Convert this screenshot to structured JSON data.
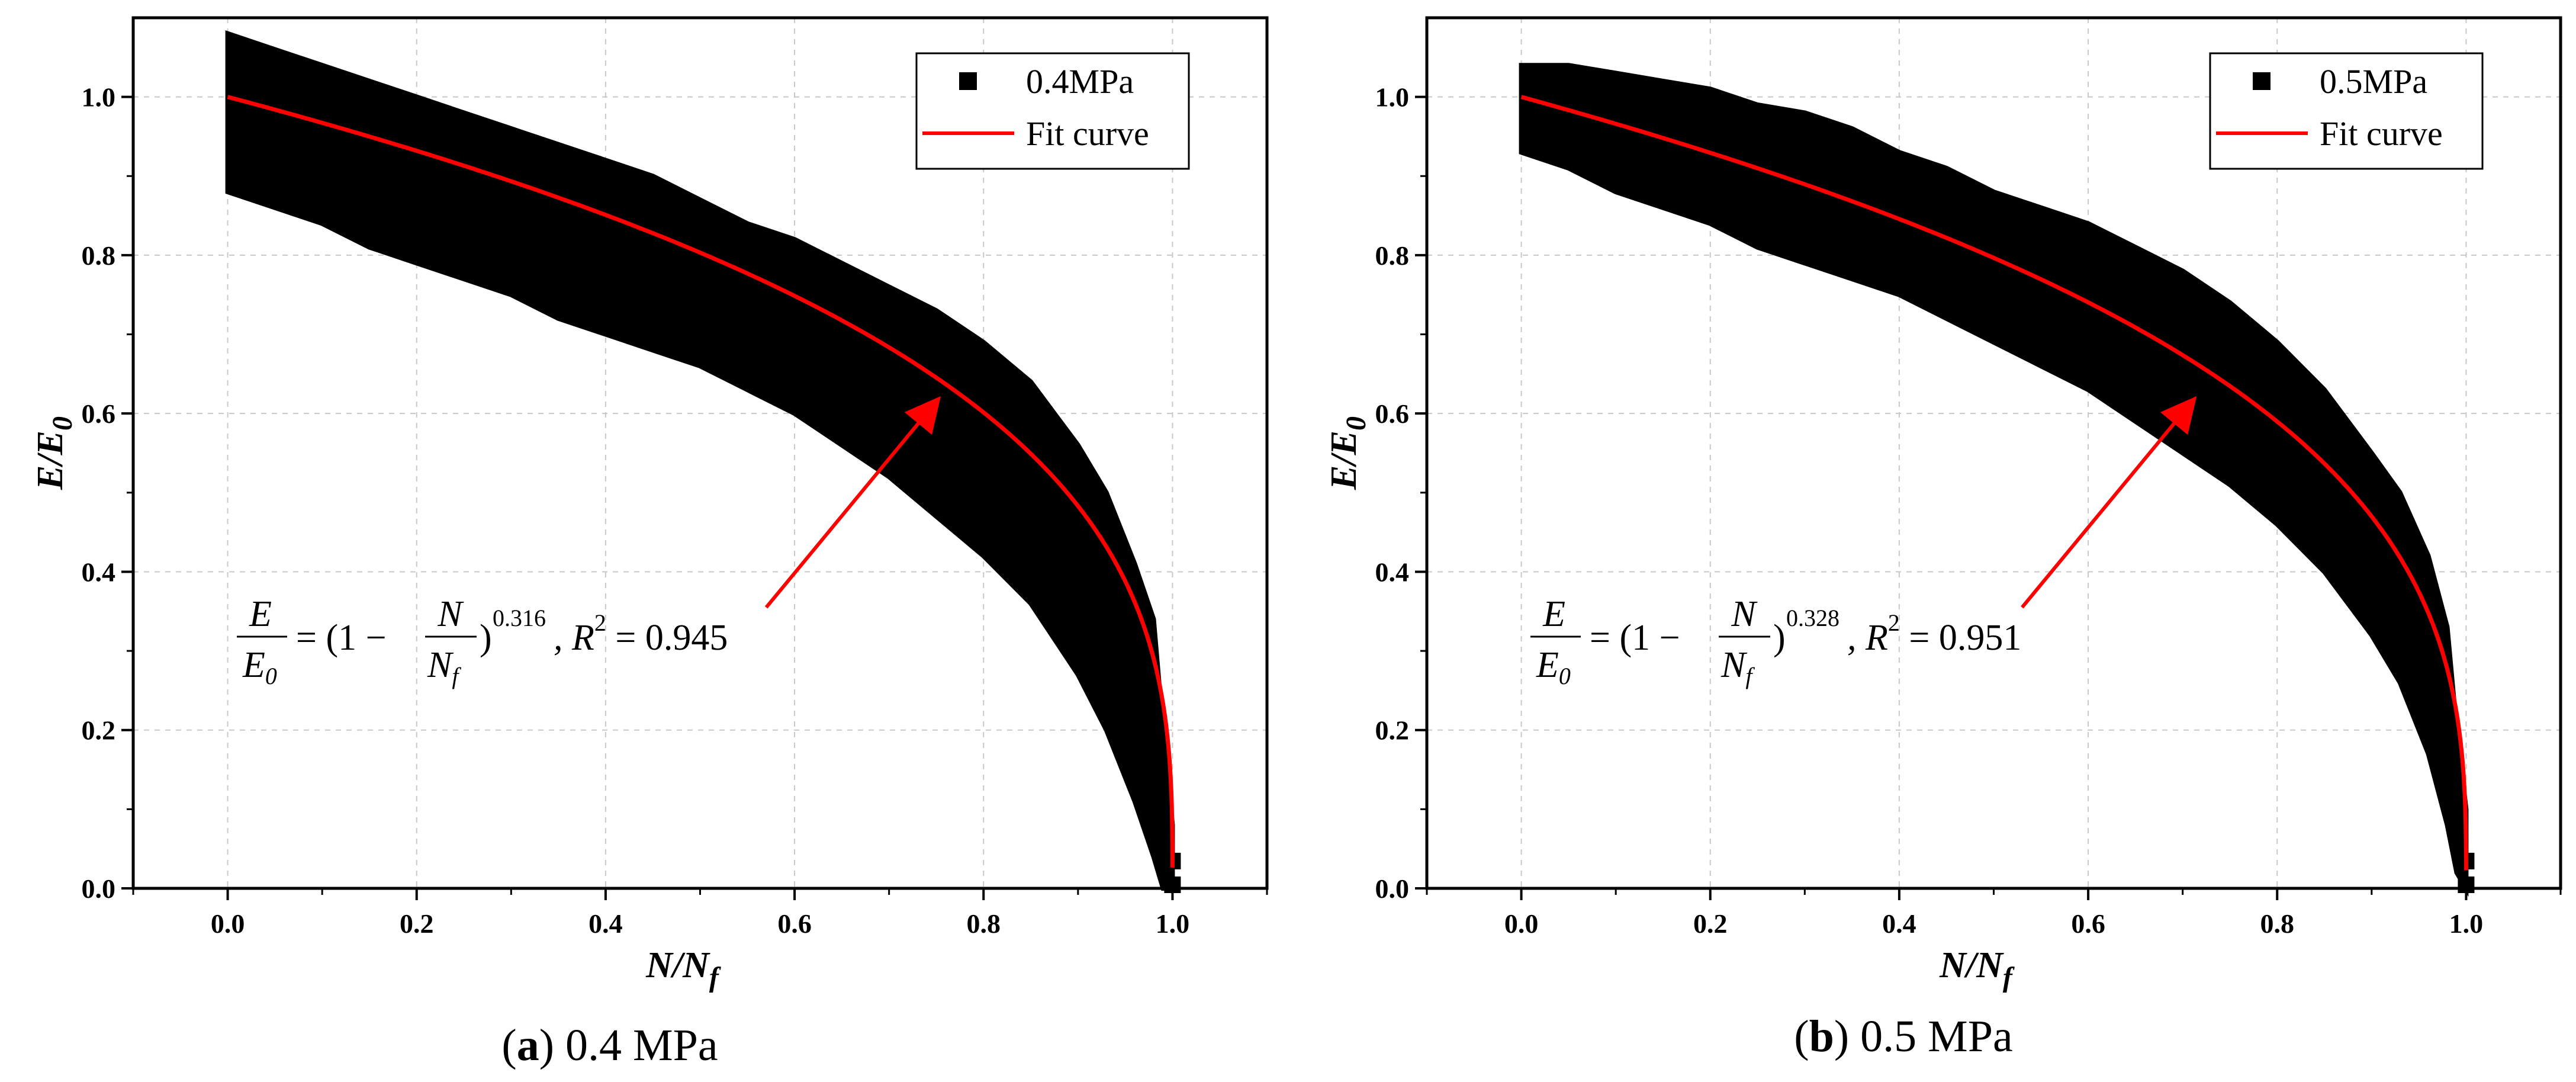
{
  "figure": {
    "panel_a_caption": {
      "letter": "a",
      "text": " 0.4 MPa"
    },
    "panel_b_caption": {
      "letter": "b",
      "text": " 0.5 MPa"
    }
  },
  "colors": {
    "data": "#000000",
    "fit": "#ff0000",
    "grid": "#c8c8c8"
  },
  "chart_data": [
    {
      "type": "scatter",
      "id": "a",
      "xlabel": {
        "main": "N/N",
        "sub": "f"
      },
      "ylabel": {
        "main": "E/E",
        "sub": "0"
      },
      "xlim": [
        -0.1,
        1.1
      ],
      "ylim": [
        0,
        1.1
      ],
      "xticks": [
        0.0,
        0.2,
        0.4,
        0.6,
        0.8,
        1.0
      ],
      "yticks": [
        0.0,
        0.2,
        0.4,
        0.6,
        0.8,
        1.0
      ],
      "xtick_labels": [
        "0.0",
        "0.2",
        "0.4",
        "0.6",
        "0.8",
        "1.0"
      ],
      "ytick_labels": [
        "0.0",
        "0.2",
        "0.4",
        "0.6",
        "0.8",
        "1.0"
      ],
      "grid": true,
      "legend": {
        "position": "top-right",
        "entries": [
          {
            "label": "0.4MPa",
            "marker": "square"
          },
          {
            "label": "Fit curve",
            "marker": "line"
          }
        ]
      },
      "series": [
        {
          "name": "0.4MPa",
          "kind": "scatter-band",
          "x": [
            0.0,
            0.05,
            0.1,
            0.15,
            0.2,
            0.25,
            0.3,
            0.35,
            0.4,
            0.45,
            0.5,
            0.55,
            0.6,
            0.65,
            0.7,
            0.75,
            0.8,
            0.85,
            0.9,
            0.93,
            0.96,
            0.98,
            0.99,
            1.0
          ],
          "upper": [
            1.08,
            1.06,
            1.04,
            1.02,
            1.0,
            0.98,
            0.96,
            0.94,
            0.92,
            0.9,
            0.87,
            0.84,
            0.82,
            0.79,
            0.76,
            0.73,
            0.69,
            0.64,
            0.56,
            0.5,
            0.41,
            0.34,
            0.2,
            0.08
          ],
          "lower": [
            0.88,
            0.86,
            0.84,
            0.81,
            0.79,
            0.77,
            0.75,
            0.72,
            0.7,
            0.68,
            0.66,
            0.63,
            0.6,
            0.56,
            0.52,
            0.47,
            0.42,
            0.36,
            0.27,
            0.2,
            0.11,
            0.04,
            0.0,
            0.0
          ]
        },
        {
          "name": "Fit curve",
          "kind": "fit",
          "a": 0.316,
          "r2": 0.945
        }
      ],
      "annotation": {
        "equation": {
          "lhs_num": "E",
          "lhs_den": "E",
          "lhs_den_sub": "0",
          "eq1": "= (1 −",
          "frac_num": "N",
          "frac_den": "N",
          "frac_den_sub": "f",
          "close": ")",
          "exponent": "0.316",
          "r_label": ", R",
          "r_sup": "2",
          "r_value": " = 0.945"
        },
        "arrow_from": [
          0.57,
          0.355
        ],
        "arrow_to": [
          0.75,
          0.615
        ]
      }
    },
    {
      "type": "scatter",
      "id": "b",
      "xlabel": {
        "main": "N/N",
        "sub": "f"
      },
      "ylabel": {
        "main": "E/E",
        "sub": "0"
      },
      "xlim": [
        -0.1,
        1.1
      ],
      "ylim": [
        0,
        1.1
      ],
      "xticks": [
        0.0,
        0.2,
        0.4,
        0.6,
        0.8,
        1.0
      ],
      "yticks": [
        0.0,
        0.2,
        0.4,
        0.6,
        0.8,
        1.0
      ],
      "xtick_labels": [
        "0.0",
        "0.2",
        "0.4",
        "0.6",
        "0.8",
        "1.0"
      ],
      "ytick_labels": [
        "0.0",
        "0.2",
        "0.4",
        "0.6",
        "0.8",
        "1.0"
      ],
      "grid": true,
      "legend": {
        "position": "top-right",
        "entries": [
          {
            "label": "0.5MPa",
            "marker": "square"
          },
          {
            "label": "Fit curve",
            "marker": "line"
          }
        ]
      },
      "series": [
        {
          "name": "0.5MPa",
          "kind": "scatter-band",
          "x": [
            0.0,
            0.05,
            0.1,
            0.15,
            0.2,
            0.25,
            0.3,
            0.35,
            0.4,
            0.45,
            0.5,
            0.55,
            0.6,
            0.65,
            0.7,
            0.75,
            0.8,
            0.85,
            0.9,
            0.93,
            0.96,
            0.98,
            0.99,
            1.0
          ],
          "upper": [
            1.04,
            1.04,
            1.03,
            1.02,
            1.01,
            0.99,
            0.98,
            0.96,
            0.93,
            0.91,
            0.88,
            0.86,
            0.84,
            0.81,
            0.78,
            0.74,
            0.69,
            0.63,
            0.55,
            0.5,
            0.42,
            0.33,
            0.2,
            0.1
          ],
          "lower": [
            0.93,
            0.91,
            0.88,
            0.86,
            0.84,
            0.81,
            0.79,
            0.77,
            0.75,
            0.72,
            0.69,
            0.66,
            0.63,
            0.59,
            0.55,
            0.51,
            0.46,
            0.4,
            0.32,
            0.26,
            0.17,
            0.08,
            0.02,
            0.0
          ]
        },
        {
          "name": "Fit curve",
          "kind": "fit",
          "a": 0.328,
          "r2": 0.951
        }
      ],
      "annotation": {
        "equation": {
          "lhs_num": "E",
          "lhs_den": "E",
          "lhs_den_sub": "0",
          "eq1": "= (1 −",
          "frac_num": "N",
          "frac_den": "N",
          "frac_den_sub": "f",
          "close": ")",
          "exponent": "0.328",
          "r_label": ", R",
          "r_sup": "2",
          "r_value": " = 0.951"
        },
        "arrow_from": [
          0.53,
          0.355
        ],
        "arrow_to": [
          0.71,
          0.615
        ]
      }
    }
  ]
}
